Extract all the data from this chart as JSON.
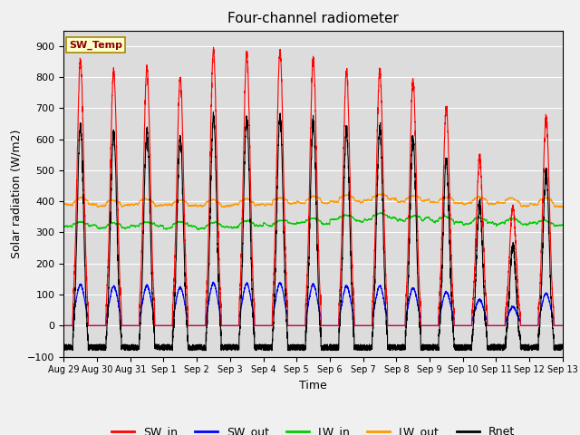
{
  "title": "Four-channel radiometer",
  "xlabel": "Time",
  "ylabel": "Solar radiation (W/m2)",
  "ylim": [
    -100,
    950
  ],
  "yticks": [
    -100,
    0,
    100,
    200,
    300,
    400,
    500,
    600,
    700,
    800,
    900
  ],
  "x_labels": [
    "Aug 29",
    "Aug 30",
    "Aug 31",
    "Sep 1",
    "Sep 2",
    "Sep 3",
    "Sep 4",
    "Sep 5",
    "Sep 6",
    "Sep 7",
    "Sep 8",
    "Sep 9",
    "Sep 10",
    "Sep 11",
    "Sep 12",
    "Sep 13"
  ],
  "num_days": 15,
  "annotation_text": "SW_Temp",
  "annotation_box_color": "#ffffcc",
  "annotation_text_color": "#8b0000",
  "colors": {
    "SW_in": "#ff0000",
    "SW_out": "#0000ff",
    "LW_in": "#00cc00",
    "LW_out": "#ff9900",
    "Rnet": "#000000"
  },
  "legend_labels": [
    "SW_in",
    "SW_out",
    "LW_in",
    "LW_out",
    "Rnet"
  ],
  "background_color": "#dcdcdc",
  "grid_color": "#ffffff",
  "fig_facecolor": "#f0f0f0",
  "figsize": [
    6.4,
    4.8
  ],
  "dpi": 100,
  "sw_in_peaks": [
    855,
    820,
    830,
    795,
    885,
    875,
    885,
    855,
    820,
    820,
    785,
    700,
    540,
    385,
    670
  ],
  "lw_in_base": [
    320,
    315,
    320,
    318,
    316,
    320,
    325,
    330,
    340,
    345,
    340,
    335,
    330,
    328,
    325
  ],
  "lw_out_base": [
    390,
    385,
    388,
    386,
    385,
    388,
    392,
    395,
    400,
    405,
    400,
    395,
    393,
    390,
    388
  ]
}
